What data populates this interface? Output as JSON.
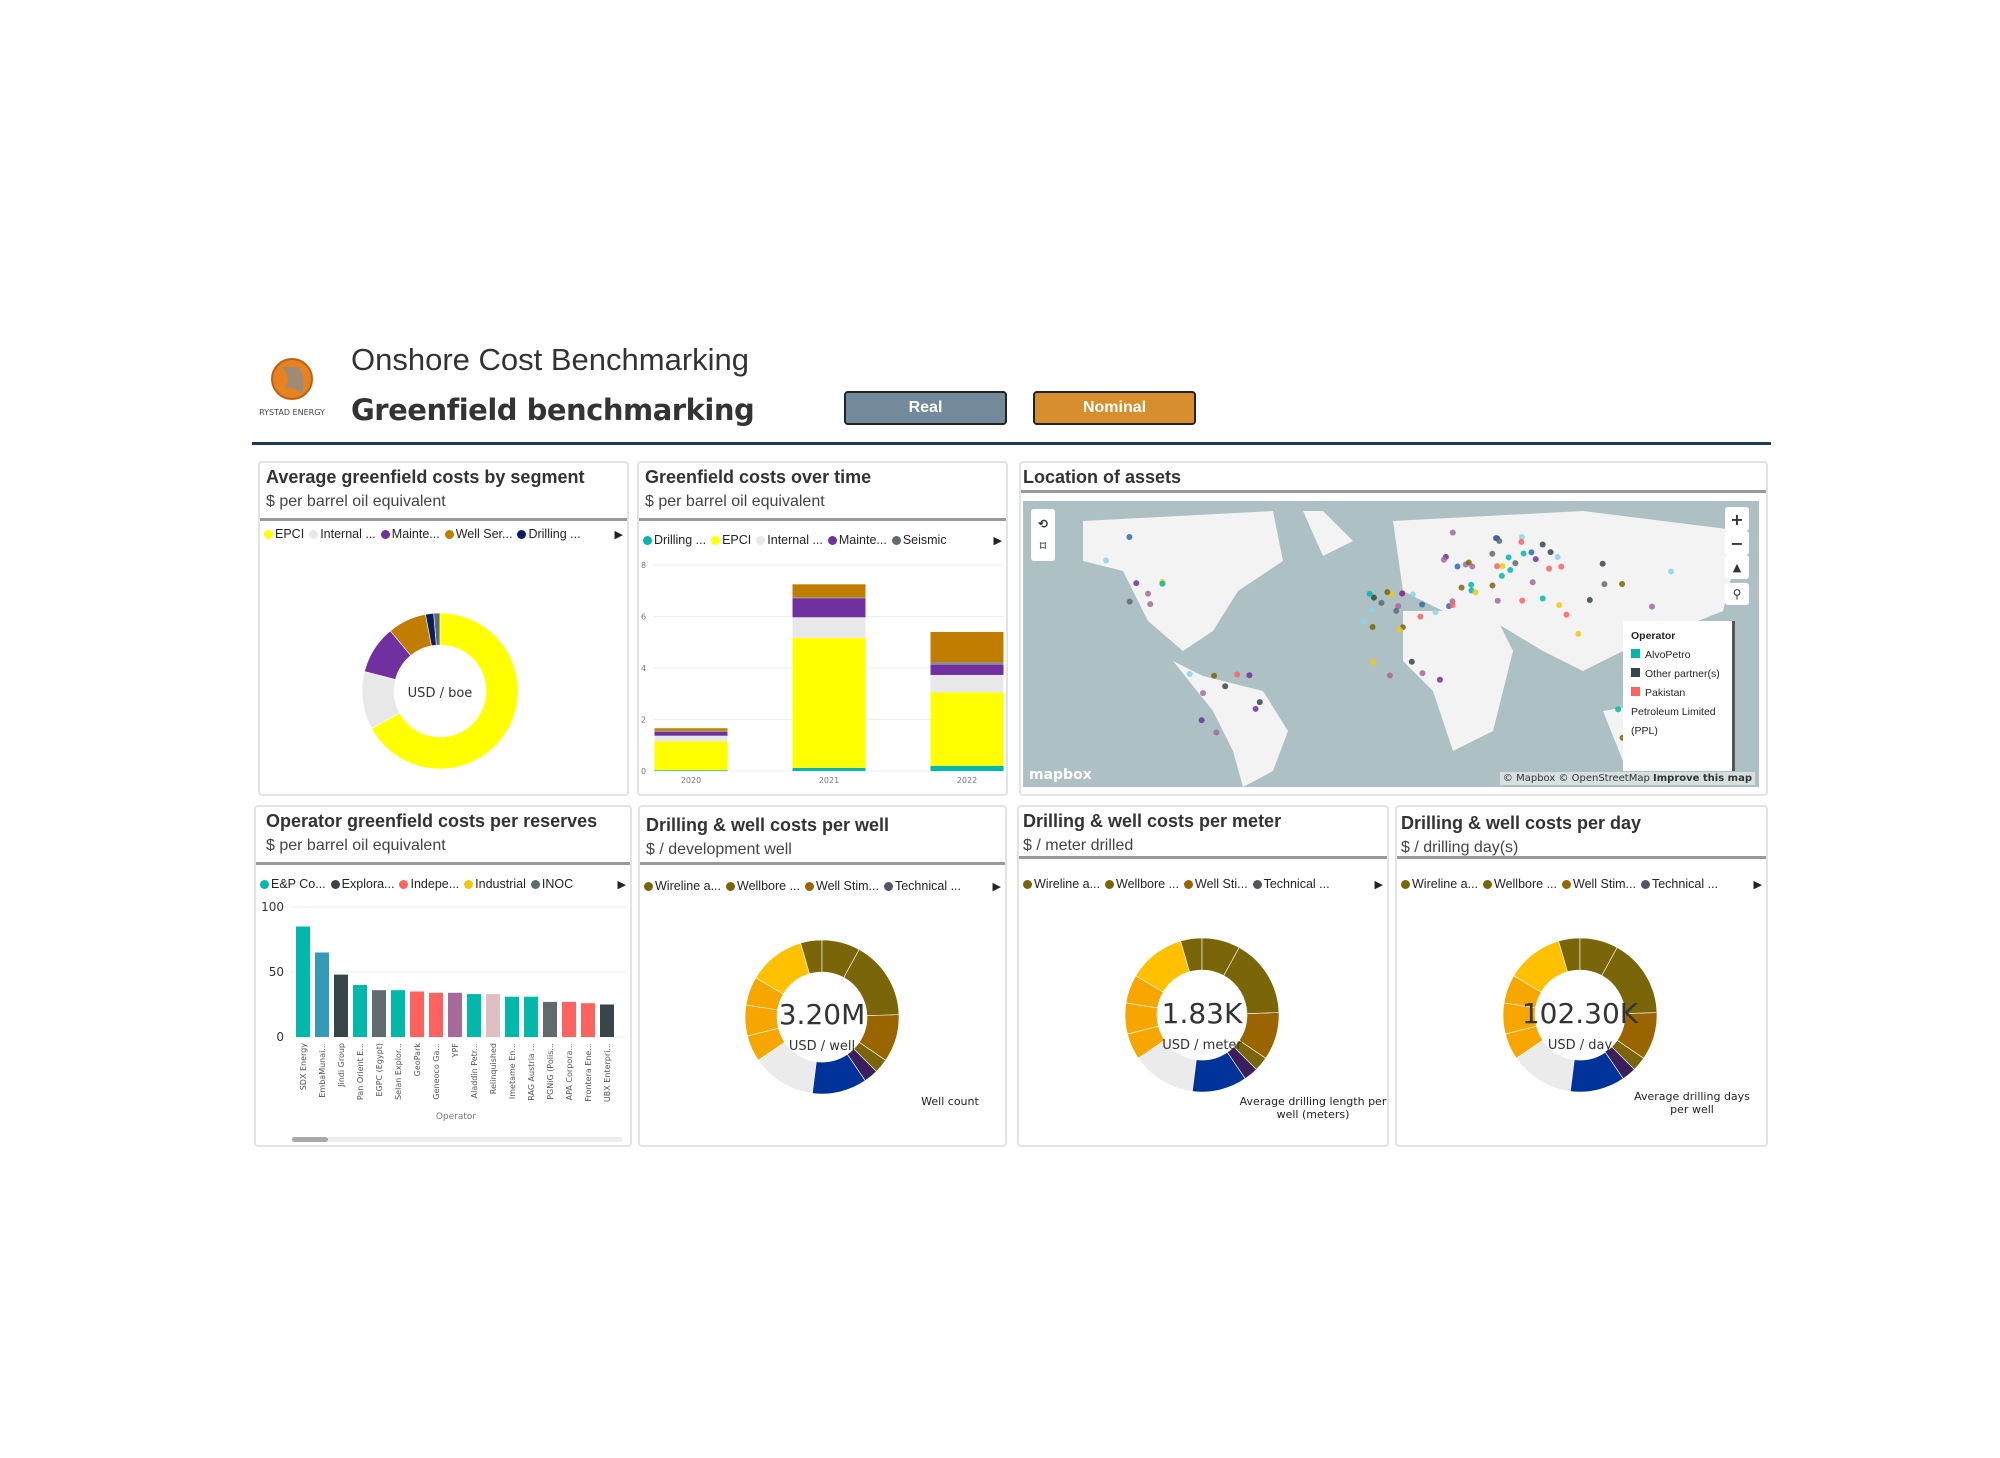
{
  "header": {
    "title": "Onshore Cost Benchmarking",
    "subtitle": "Greenfield benchmarking",
    "logo_text": "RYSTAD ENERGY",
    "real_label": "Real",
    "nominal_label": "Nominal"
  },
  "colors": {
    "accent_rule": "#1f3b57",
    "real_btn": "#728a9a",
    "nominal_btn": "#d68f2c"
  },
  "panel1": {
    "title": "Average greenfield costs by segment",
    "subtitle": "$ per barrel oil equivalent",
    "center_label": "USD / boe",
    "legend": [
      {
        "label": "EPCI",
        "color": "#ffff00"
      },
      {
        "label": "Internal ...",
        "color": "#e8e8e8"
      },
      {
        "label": "Mainte...",
        "color": "#7030a0"
      },
      {
        "label": "Well Ser...",
        "color": "#c07d00"
      },
      {
        "label": "Drilling ...",
        "color": "#0a2060"
      }
    ]
  },
  "panel2": {
    "title": "Greenfield costs over time",
    "subtitle": "$ per barrel oil equivalent",
    "legend": [
      {
        "label": "Drilling ...",
        "color": "#01b8aa"
      },
      {
        "label": "EPCI",
        "color": "#ffff00"
      },
      {
        "label": "Internal ...",
        "color": "#e8e8e8"
      },
      {
        "label": "Mainte...",
        "color": "#7030a0"
      },
      {
        "label": "Seismic",
        "color": "#5f6b6d"
      }
    ]
  },
  "panel3": {
    "title": "Location of assets",
    "legend_title": "Operator",
    "legend": [
      {
        "label": "AlvoPetro",
        "color": "#01b8aa"
      },
      {
        "label": "Other partner(s)",
        "color": "#374649"
      },
      {
        "label": "Pakistan Petroleum Limited (PPL)",
        "color": "#fd625e"
      }
    ],
    "attribution": "© Mapbox © OpenStreetMap",
    "improve": "Improve this map",
    "brand": "mapbox"
  },
  "panel4": {
    "title": "Operator greenfield costs per reserves",
    "subtitle": "$ per barrel oil equivalent",
    "legend": [
      {
        "label": "E&P Co...",
        "color": "#01b8aa"
      },
      {
        "label": "Explora...",
        "color": "#374649"
      },
      {
        "label": "Indepe...",
        "color": "#fd625e"
      },
      {
        "label": "Industrial",
        "color": "#f2c80f"
      },
      {
        "label": "INOC",
        "color": "#5f6b6d"
      }
    ]
  },
  "panel5": {
    "title": "Drilling & well costs per well",
    "subtitle": "$ / development well",
    "kpi": "3.20M",
    "kpi_unit": "USD / well",
    "note": "Well count"
  },
  "panel6": {
    "title": "Drilling & well costs per meter",
    "subtitle": "$ / meter drilled",
    "kpi": "1.83K",
    "kpi_unit": "USD / meter",
    "note": "Average drilling length per well (meters)"
  },
  "panel7": {
    "title": "Drilling & well costs per day",
    "subtitle": "$ / drilling day(s)",
    "kpi": "102.30K",
    "kpi_unit": "USD / day",
    "note": "Average drilling days per well"
  },
  "well_legend": {
    "per_well": [
      "Wireline a...",
      "Wellbore ...",
      "Well Stim...",
      "Technical ..."
    ],
    "per_meter": [
      "Wireline a...",
      "Wellbore ...",
      "Well Sti...",
      "Technical ..."
    ],
    "per_day": [
      "Wireline a...",
      "Wellbore ...",
      "Well Stim...",
      "Technical ..."
    ],
    "colors": [
      "#7a6608",
      "#7a6608",
      "#9a6400",
      "#555560"
    ]
  },
  "chart_data": [
    {
      "type": "pie",
      "name": "Average greenfield costs by segment",
      "categories": [
        "EPCI",
        "Internal",
        "Maintenance",
        "Well Services",
        "Drilling",
        "Seismic"
      ],
      "values": [
        0.67,
        0.12,
        0.1,
        0.08,
        0.017,
        0.013
      ],
      "colors": [
        "#ffff00",
        "#e8e8e8",
        "#7030a0",
        "#c07d00",
        "#0a2060",
        "#5f6b6d"
      ]
    },
    {
      "type": "bar",
      "stacked": true,
      "name": "Greenfield costs over time",
      "categories": [
        "2020",
        "2021",
        "2022"
      ],
      "ylim": [
        0,
        8
      ],
      "yticks": [
        0,
        2,
        4,
        6,
        8
      ],
      "series": [
        {
          "name": "Drilling",
          "color": "#01b8aa",
          "values": [
            0.03,
            0.12,
            0.2
          ]
        },
        {
          "name": "EPCI",
          "color": "#ffff00",
          "values": [
            1.12,
            5.05,
            2.85
          ]
        },
        {
          "name": "Internal",
          "color": "#e8e8e8",
          "values": [
            0.22,
            0.8,
            0.68
          ]
        },
        {
          "name": "Maintenance",
          "color": "#7030a0",
          "values": [
            0.15,
            0.73,
            0.4
          ]
        },
        {
          "name": "Seismic",
          "color": "#8a8a8a",
          "values": [
            0.04,
            0.05,
            0.1
          ]
        },
        {
          "name": "Well Services",
          "color": "#c07d00",
          "values": [
            0.1,
            0.5,
            1.17
          ]
        }
      ]
    },
    {
      "type": "bar",
      "name": "Operator greenfield costs per reserves",
      "xlabel": "Operator",
      "ylim": [
        0,
        100
      ],
      "yticks": [
        0,
        50,
        100
      ],
      "categories": [
        "SDX Energy",
        "EmbaMunai...",
        "Jindi Group",
        "Pan Orient E...",
        "EGPC (Egypt)",
        "Selan Explor...",
        "GeoPark",
        "Geneoco Ga...",
        "YPF",
        "Aladdin Petr...",
        "Relinquished",
        "Imetame En...",
        "RAG Austria ...",
        "PGNiG (Polis...",
        "APA Corpora...",
        "Frontera Ene...",
        "UBX Enterpri..."
      ],
      "values": [
        85,
        65,
        48,
        40,
        36,
        36,
        35,
        34,
        34,
        33,
        33,
        31,
        31,
        27,
        27,
        26,
        25
      ],
      "colors": [
        "#01b8aa",
        "#3599b8",
        "#374649",
        "#01b8aa",
        "#5f6b6d",
        "#01b8aa",
        "#fd625e",
        "#fd625e",
        "#a66999",
        "#01b8aa",
        "#dfbfbf",
        "#01b8aa",
        "#01b8aa",
        "#5f6b6d",
        "#fd625e",
        "#fd625e",
        "#374649"
      ]
    },
    {
      "type": "pie",
      "name": "Drilling & well costs per well",
      "values": [
        0.08,
        0.165,
        0.1,
        0.03,
        0.03,
        0.115,
        0.135,
        0.055,
        0.065,
        0.06,
        0.12,
        0.045
      ],
      "colors": [
        "#7a6608",
        "#7a6608",
        "#9a6400",
        "#7a6608",
        "#3b1f5c",
        "#003399",
        "#ebebeb",
        "#f7a600",
        "#f7a600",
        "#f7a600",
        "#ffc000",
        "#7a6608"
      ]
    },
    {
      "type": "pie",
      "name": "Drilling & well costs per meter",
      "values": [
        0.08,
        0.165,
        0.1,
        0.03,
        0.03,
        0.115,
        0.135,
        0.055,
        0.065,
        0.06,
        0.12,
        0.045
      ],
      "colors": [
        "#7a6608",
        "#7a6608",
        "#9a6400",
        "#7a6608",
        "#3b1f5c",
        "#003399",
        "#ebebeb",
        "#f7a600",
        "#f7a600",
        "#f7a600",
        "#ffc000",
        "#7a6608"
      ]
    },
    {
      "type": "pie",
      "name": "Drilling & well costs per day",
      "values": [
        0.08,
        0.165,
        0.1,
        0.03,
        0.03,
        0.115,
        0.135,
        0.055,
        0.065,
        0.06,
        0.12,
        0.045
      ],
      "colors": [
        "#7a6608",
        "#7a6608",
        "#9a6400",
        "#7a6608",
        "#3b1f5c",
        "#003399",
        "#ebebeb",
        "#f7a600",
        "#f7a600",
        "#f7a600",
        "#ffc000",
        "#7a6608"
      ]
    }
  ]
}
